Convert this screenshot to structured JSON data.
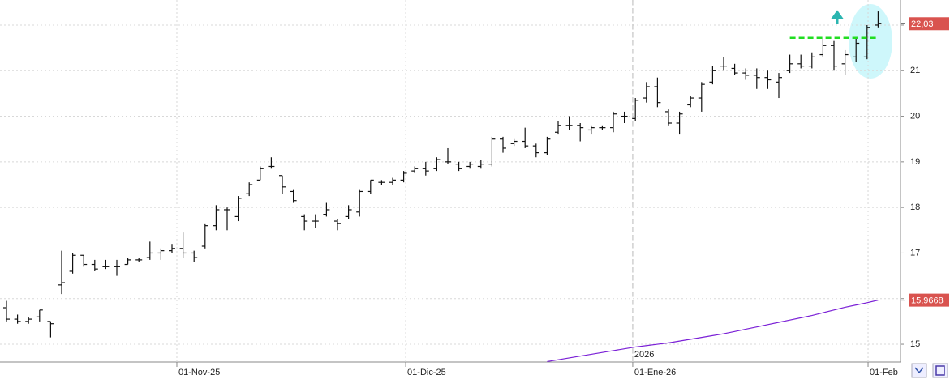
{
  "chart_data": {
    "type": "ohlc",
    "ylim": [
      14.61,
      22.55
    ],
    "yticks": [
      15,
      16,
      17,
      18,
      19,
      20,
      21,
      22
    ],
    "xlim": [
      -0.6,
      81.0
    ],
    "xticks": [
      {
        "value": 15.44,
        "label": "01-Nov-25"
      },
      {
        "value": 36.18,
        "label": "01-Dic-25"
      },
      {
        "value": 56.76,
        "label": "01-Ene-26"
      },
      {
        "value": 78.09,
        "label": "01-Feb"
      }
    ],
    "annotations": [
      {
        "text": "2026",
        "x": 56.76
      }
    ],
    "grid": true,
    "level": {
      "value": 21.72,
      "color": "#22dd22"
    },
    "series": [
      {
        "color": "#111111",
        "last_label": "22,03",
        "values": [
          [
            15.8,
            15.95,
            15.5,
            15.55
          ],
          [
            15.55,
            15.65,
            15.45,
            15.5
          ],
          [
            15.5,
            15.6,
            15.45,
            15.55
          ],
          [
            15.6,
            15.75,
            15.5,
            15.75
          ],
          [
            15.5,
            15.5,
            15.15,
            15.45
          ],
          [
            16.3,
            17.05,
            16.1,
            16.35
          ],
          [
            16.6,
            17.0,
            16.55,
            16.95
          ],
          [
            16.95,
            16.95,
            16.7,
            16.75
          ],
          [
            16.75,
            16.85,
            16.6,
            16.65
          ],
          [
            16.7,
            16.85,
            16.65,
            16.7
          ],
          [
            16.7,
            16.85,
            16.5,
            16.7
          ],
          [
            16.75,
            16.9,
            16.75,
            16.85
          ],
          [
            16.85,
            16.9,
            16.8,
            16.85
          ],
          [
            16.9,
            17.25,
            16.85,
            17.0
          ],
          [
            17.0,
            17.1,
            16.85,
            17.05
          ],
          [
            17.05,
            17.2,
            17.0,
            17.1
          ],
          [
            17.1,
            17.45,
            16.9,
            17.0
          ],
          [
            17.0,
            17.05,
            16.8,
            16.9
          ],
          [
            17.15,
            17.65,
            17.1,
            17.6
          ],
          [
            17.6,
            18.05,
            17.5,
            17.95
          ],
          [
            17.95,
            18.0,
            17.5,
            17.95
          ],
          [
            17.8,
            18.25,
            17.7,
            18.2
          ],
          [
            18.3,
            18.55,
            18.25,
            18.5
          ],
          [
            18.6,
            18.9,
            18.6,
            18.85
          ],
          [
            18.9,
            19.1,
            18.85,
            18.9
          ],
          [
            18.7,
            18.7,
            18.3,
            18.45
          ],
          [
            18.35,
            18.4,
            18.1,
            18.15
          ],
          [
            17.8,
            17.85,
            17.5,
            17.7
          ],
          [
            17.7,
            17.85,
            17.55,
            17.7
          ],
          [
            17.85,
            18.1,
            17.8,
            17.95
          ],
          [
            17.7,
            17.75,
            17.5,
            17.65
          ],
          [
            17.8,
            18.05,
            17.75,
            17.95
          ],
          [
            17.9,
            18.4,
            17.8,
            18.35
          ],
          [
            18.35,
            18.6,
            18.3,
            18.6
          ],
          [
            18.55,
            18.6,
            18.5,
            18.55
          ],
          [
            18.55,
            18.65,
            18.5,
            18.6
          ],
          [
            18.6,
            18.8,
            18.55,
            18.75
          ],
          [
            18.8,
            18.9,
            18.75,
            18.85
          ],
          [
            18.85,
            19.0,
            18.7,
            18.8
          ],
          [
            18.85,
            19.1,
            18.8,
            19.05
          ],
          [
            19.0,
            19.3,
            18.95,
            19.0
          ],
          [
            18.95,
            19.0,
            18.8,
            18.85
          ],
          [
            18.9,
            19.0,
            18.85,
            18.95
          ],
          [
            18.9,
            19.05,
            18.85,
            18.95
          ],
          [
            18.95,
            19.55,
            18.9,
            19.5
          ],
          [
            19.5,
            19.55,
            19.2,
            19.3
          ],
          [
            19.4,
            19.5,
            19.35,
            19.45
          ],
          [
            19.45,
            19.75,
            19.3,
            19.35
          ],
          [
            19.35,
            19.4,
            19.1,
            19.2
          ],
          [
            19.2,
            19.55,
            19.15,
            19.5
          ],
          [
            19.65,
            19.9,
            19.6,
            19.8
          ],
          [
            19.8,
            20.0,
            19.7,
            19.8
          ],
          [
            19.8,
            19.85,
            19.45,
            19.75
          ],
          [
            19.7,
            19.8,
            19.6,
            19.75
          ],
          [
            19.75,
            19.8,
            19.7,
            19.75
          ],
          [
            19.75,
            20.1,
            19.65,
            20.05
          ],
          [
            20.0,
            20.1,
            19.85,
            20.0
          ],
          [
            19.95,
            20.4,
            19.9,
            20.35
          ],
          [
            20.4,
            20.75,
            20.3,
            20.65
          ],
          [
            20.65,
            20.85,
            20.2,
            20.3
          ],
          [
            20.1,
            20.15,
            19.8,
            19.85
          ],
          [
            19.85,
            20.1,
            19.6,
            20.05
          ],
          [
            20.25,
            20.45,
            20.2,
            20.4
          ],
          [
            20.4,
            20.75,
            20.1,
            20.7
          ],
          [
            20.75,
            21.1,
            20.7,
            21.0
          ],
          [
            21.1,
            21.3,
            21.0,
            21.1
          ],
          [
            21.05,
            21.15,
            20.9,
            20.95
          ],
          [
            20.95,
            21.05,
            20.8,
            20.9
          ],
          [
            20.9,
            21.05,
            20.6,
            20.85
          ],
          [
            20.85,
            21.0,
            20.6,
            20.8
          ],
          [
            20.75,
            20.95,
            20.4,
            20.85
          ],
          [
            21.0,
            21.35,
            20.95,
            21.15
          ],
          [
            21.15,
            21.35,
            21.05,
            21.1
          ],
          [
            21.1,
            21.4,
            21.05,
            21.3
          ],
          [
            21.35,
            21.7,
            21.3,
            21.55
          ],
          [
            21.55,
            21.65,
            21.0,
            21.1
          ],
          [
            21.15,
            21.45,
            20.9,
            21.35
          ],
          [
            21.3,
            21.7,
            21.2,
            21.6
          ],
          [
            21.3,
            22.0,
            21.25,
            21.95
          ],
          [
            22.0,
            22.3,
            21.95,
            22.03
          ]
        ]
      },
      {
        "type": "line",
        "color": "#7a1fd6",
        "last_label": "15,9668",
        "values": [
          null,
          null,
          null,
          null,
          null,
          null,
          null,
          null,
          null,
          null,
          null,
          null,
          null,
          null,
          null,
          null,
          null,
          null,
          null,
          null,
          null,
          null,
          null,
          null,
          null,
          null,
          null,
          null,
          null,
          null,
          null,
          null,
          null,
          null,
          null,
          null,
          null,
          null,
          null,
          null,
          null,
          null,
          null,
          null,
          null,
          null,
          null,
          null,
          null,
          14.62,
          14.66,
          14.7,
          14.74,
          14.78,
          14.82,
          14.86,
          14.9,
          14.94,
          14.97,
          15.0,
          15.03,
          15.07,
          15.11,
          15.15,
          15.19,
          15.23,
          15.28,
          15.33,
          15.38,
          15.43,
          15.48,
          15.53,
          15.58,
          15.63,
          15.69,
          15.75,
          15.81,
          15.86,
          15.91,
          15.9668
        ]
      }
    ]
  }
}
